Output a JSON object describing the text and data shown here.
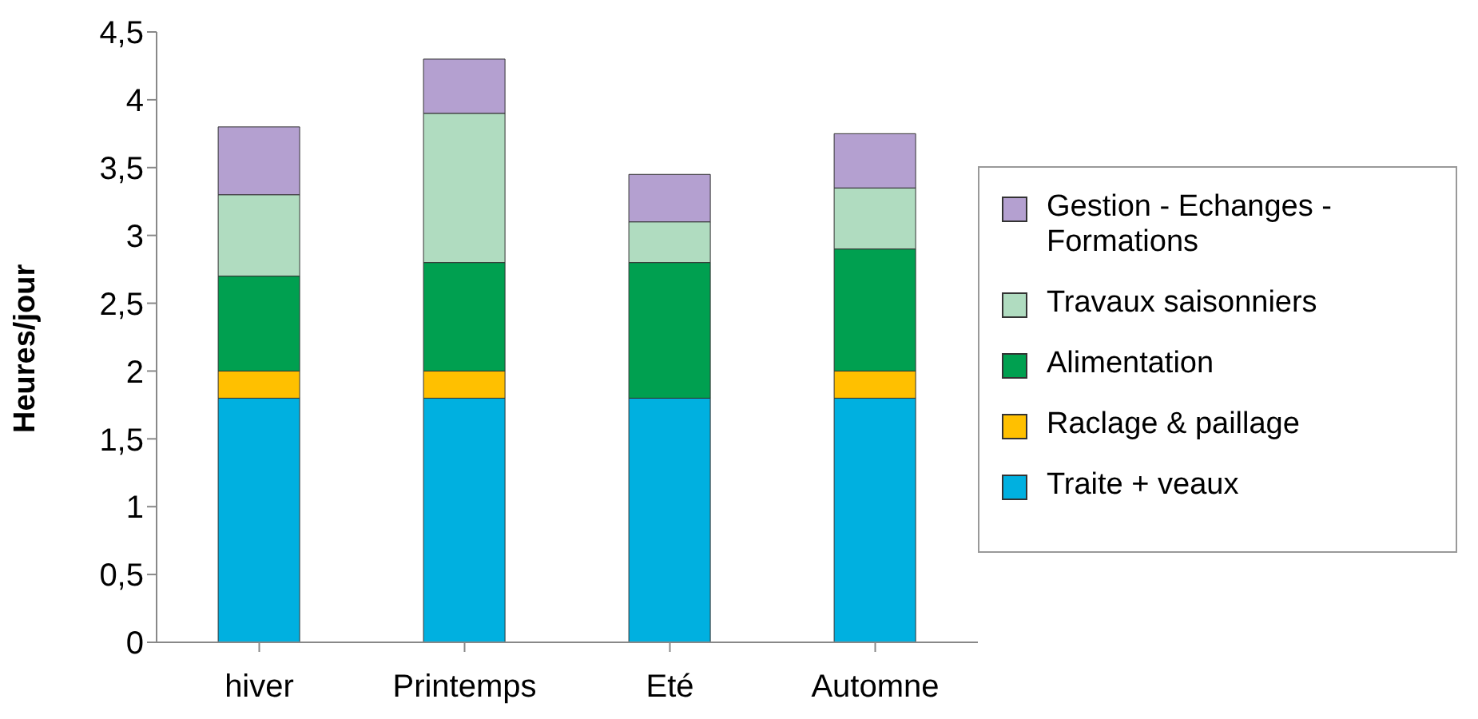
{
  "chart_data": {
    "type": "bar",
    "stacked": true,
    "ylabel": "Heures/jour",
    "categories": [
      "hiver",
      "Printemps",
      "Eté",
      "Automne"
    ],
    "series": [
      {
        "name": "Traite + veaux",
        "color": "#00b0e0",
        "values": [
          1.8,
          1.8,
          1.8,
          1.8
        ]
      },
      {
        "name": "Raclage & paillage",
        "color": "#ffc000",
        "values": [
          0.2,
          0.2,
          0,
          0.2
        ]
      },
      {
        "name": "Alimentation",
        "color": "#00a050",
        "values": [
          0.7,
          0.8,
          1.0,
          0.9
        ]
      },
      {
        "name": "Travaux saisonniers",
        "color": "#b0dcc0",
        "values": [
          0.6,
          1.1,
          0.3,
          0.45
        ]
      },
      {
        "name": "Gestion - Echanges - Formations",
        "color": "#b4a0d0",
        "values": [
          0.5,
          0.4,
          0.35,
          0.4
        ]
      }
    ],
    "ylim": [
      0,
      4.5
    ],
    "yticks": [
      0,
      {
        "value": 0.5,
        "label": "0,5"
      },
      1,
      {
        "value": 1.5,
        "label": "1,5"
      },
      2,
      {
        "value": 2.5,
        "label": "2,5"
      },
      3,
      {
        "value": 3.5,
        "label": "3,5"
      },
      4,
      {
        "value": 4.5,
        "label": "4,5"
      }
    ],
    "grid": false,
    "legend": "right"
  }
}
